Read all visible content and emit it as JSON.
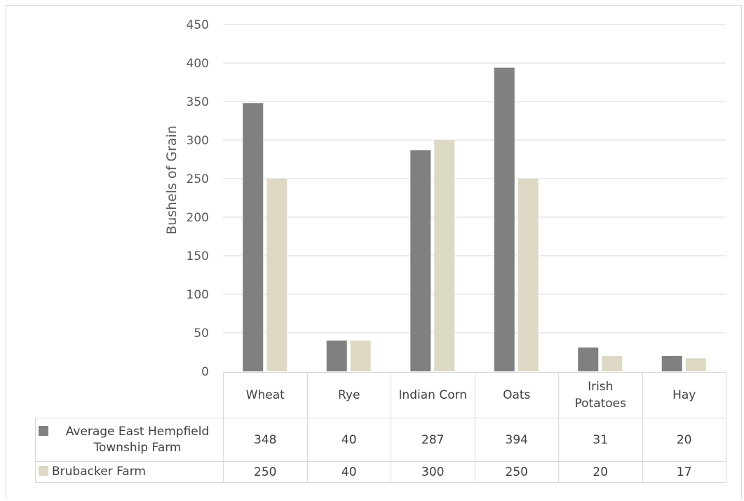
{
  "chart_data": {
    "type": "bar",
    "title": "",
    "xlabel": "",
    "ylabel": "Bushels of Grain",
    "ylim": [
      0,
      450
    ],
    "yticks": [
      0,
      50,
      100,
      150,
      200,
      250,
      300,
      350,
      400,
      450
    ],
    "grid": true,
    "legend": "data-table",
    "categories": [
      "Wheat",
      "Rye",
      "Indian Corn",
      "Oats",
      "Irish Potatoes",
      "Hay"
    ],
    "series": [
      {
        "name": "Average East Hempfield Township Farm",
        "color": "#808080",
        "values": [
          348,
          40,
          287,
          394,
          31,
          20
        ]
      },
      {
        "name": "Brubacker Farm",
        "color": "#ddd9c4",
        "values": [
          250,
          40,
          300,
          250,
          20,
          17
        ]
      }
    ]
  }
}
